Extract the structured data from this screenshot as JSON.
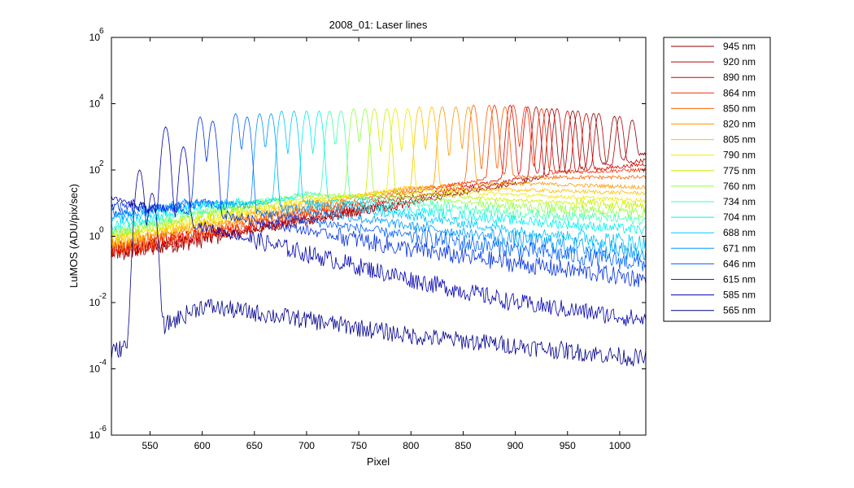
{
  "chart_data": {
    "type": "line",
    "title": "2008_01: Laser lines",
    "xlabel": "Pixel",
    "ylabel": "LuMOS (ADU/pix/sec)",
    "xlim": [
      513,
      1025
    ],
    "ylim": [
      1e-06,
      1000000.0
    ],
    "yscale": "log",
    "grid": false,
    "legend_position": "outside-right",
    "xticks": [
      550,
      600,
      650,
      700,
      750,
      800,
      850,
      900,
      950,
      1000
    ],
    "xtick_labels": [
      "550",
      "600",
      "650",
      "700",
      "750",
      "800",
      "850",
      "900",
      "950",
      "1000"
    ],
    "yticks": [
      {
        "base": "10",
        "exp": "-6",
        "value": 1e-06
      },
      {
        "base": "10",
        "exp": "-4",
        "value": 0.0001
      },
      {
        "base": "10",
        "exp": "-2",
        "value": 0.01
      },
      {
        "base": "10",
        "exp": "0",
        "value": 1
      },
      {
        "base": "10",
        "exp": "2",
        "value": 100
      },
      {
        "base": "10",
        "exp": "4",
        "value": 10000
      },
      {
        "base": "10",
        "exp": "6",
        "value": 1000000
      }
    ],
    "series": [
      {
        "name": "945 nm",
        "color": "#8b0000",
        "peak_pixels": [
          935,
          955,
          975,
          995,
          1012
        ],
        "peak_values": [
          7000,
          6000,
          5000,
          4000,
          3000
        ],
        "baseline": [
          [
            513,
            0.3
          ],
          [
            600,
            0.8
          ],
          [
            700,
            3
          ],
          [
            800,
            10
          ],
          [
            900,
            40
          ],
          [
            1025,
            300
          ]
        ]
      },
      {
        "name": "920 nm",
        "color": "#b40000",
        "peak_pixels": [
          920,
          940,
          960,
          980,
          1000
        ],
        "peak_values": [
          8000,
          7000,
          6000,
          5000,
          4000
        ],
        "baseline": [
          [
            513,
            0.3
          ],
          [
            600,
            0.9
          ],
          [
            700,
            3
          ],
          [
            800,
            12
          ],
          [
            900,
            50
          ],
          [
            1025,
            200
          ]
        ]
      },
      {
        "name": "890 nm",
        "color": "#d70000",
        "peak_pixels": [
          895,
          912,
          930,
          950,
          968
        ],
        "peak_values": [
          9000,
          8000,
          7000,
          6000,
          5000
        ],
        "baseline": [
          [
            513,
            0.4
          ],
          [
            600,
            1
          ],
          [
            700,
            4
          ],
          [
            800,
            15
          ],
          [
            900,
            60
          ],
          [
            1025,
            150
          ]
        ]
      },
      {
        "name": "864 nm",
        "color": "#f03000",
        "peak_pixels": [
          880,
          898,
          910,
          925
        ],
        "peak_values": [
          9000,
          9000,
          8000,
          7000
        ],
        "baseline": [
          [
            513,
            0.4
          ],
          [
            600,
            1.2
          ],
          [
            700,
            5
          ],
          [
            800,
            20
          ],
          [
            900,
            80
          ],
          [
            1025,
            100
          ]
        ]
      },
      {
        "name": "850 nm",
        "color": "#ff6000",
        "peak_pixels": [
          860,
          875,
          890
        ],
        "peak_values": [
          9000,
          9000,
          8000
        ],
        "baseline": [
          [
            513,
            0.5
          ],
          [
            600,
            1.5
          ],
          [
            700,
            6
          ],
          [
            800,
            25
          ],
          [
            900,
            60
          ],
          [
            1025,
            60
          ]
        ]
      },
      {
        "name": "820 nm",
        "color": "#ff9800",
        "peak_pixels": [
          830,
          843,
          855
        ],
        "peak_values": [
          8000,
          8000,
          8000
        ],
        "baseline": [
          [
            513,
            0.6
          ],
          [
            600,
            2
          ],
          [
            700,
            8
          ],
          [
            800,
            30
          ],
          [
            900,
            40
          ],
          [
            1025,
            30
          ]
        ]
      },
      {
        "name": "805 nm",
        "color": "#ffc000",
        "peak_pixels": [
          808,
          820
        ],
        "peak_values": [
          8000,
          8000
        ],
        "baseline": [
          [
            513,
            0.7
          ],
          [
            600,
            2.5
          ],
          [
            700,
            10
          ],
          [
            800,
            30
          ],
          [
            900,
            25
          ],
          [
            1025,
            20
          ]
        ]
      },
      {
        "name": "790 nm",
        "color": "#f0e800",
        "peak_pixels": [
          785,
          797
        ],
        "peak_values": [
          7000,
          7000
        ],
        "baseline": [
          [
            513,
            0.8
          ],
          [
            600,
            3
          ],
          [
            700,
            12
          ],
          [
            800,
            25
          ],
          [
            900,
            18
          ],
          [
            1025,
            12
          ]
        ]
      },
      {
        "name": "775 nm",
        "color": "#c8f000",
        "peak_pixels": [
          765,
          777
        ],
        "peak_values": [
          7000,
          7000
        ],
        "baseline": [
          [
            513,
            1
          ],
          [
            600,
            4
          ],
          [
            700,
            15
          ],
          [
            800,
            20
          ],
          [
            900,
            12
          ],
          [
            1025,
            8
          ]
        ]
      },
      {
        "name": "760 nm",
        "color": "#90ff40",
        "peak_pixels": [
          745,
          756
        ],
        "peak_values": [
          7000,
          7000
        ],
        "baseline": [
          [
            513,
            1.2
          ],
          [
            600,
            5
          ],
          [
            700,
            18
          ],
          [
            800,
            15
          ],
          [
            900,
            8
          ],
          [
            1025,
            5
          ]
        ]
      },
      {
        "name": "734 nm",
        "color": "#40ffb0",
        "peak_pixels": [
          722,
          733
        ],
        "peak_values": [
          6000,
          6000
        ],
        "baseline": [
          [
            513,
            1.5
          ],
          [
            600,
            6
          ],
          [
            700,
            20
          ],
          [
            800,
            10
          ],
          [
            900,
            5
          ],
          [
            1025,
            3
          ]
        ]
      },
      {
        "name": "704 nm",
        "color": "#00f0f0",
        "peak_pixels": [
          700,
          712
        ],
        "peak_values": [
          6000,
          6000
        ],
        "baseline": [
          [
            513,
            2
          ],
          [
            600,
            8
          ],
          [
            700,
            15
          ],
          [
            800,
            6
          ],
          [
            900,
            3
          ],
          [
            1025,
            1.5
          ]
        ]
      },
      {
        "name": "688 nm",
        "color": "#00c8ff",
        "peak_pixels": [
          676,
          688
        ],
        "peak_values": [
          6000,
          6000
        ],
        "baseline": [
          [
            513,
            3
          ],
          [
            600,
            10
          ],
          [
            700,
            10
          ],
          [
            800,
            4
          ],
          [
            900,
            1.5
          ],
          [
            1025,
            0.6
          ]
        ]
      },
      {
        "name": "671 nm",
        "color": "#0098ff",
        "peak_pixels": [
          655,
          666
        ],
        "peak_values": [
          5000,
          5000
        ],
        "baseline": [
          [
            513,
            4
          ],
          [
            600,
            12
          ],
          [
            700,
            6
          ],
          [
            800,
            2
          ],
          [
            900,
            0.8
          ],
          [
            1025,
            0.3
          ]
        ]
      },
      {
        "name": "646 nm",
        "color": "#0060ff",
        "peak_pixels": [
          632,
          643
        ],
        "peak_values": [
          5000,
          4000
        ],
        "baseline": [
          [
            513,
            5
          ],
          [
            600,
            10
          ],
          [
            700,
            3
          ],
          [
            800,
            1
          ],
          [
            900,
            0.4
          ],
          [
            1025,
            0.15
          ]
        ]
      },
      {
        "name": "615 nm",
        "color": "#0030e0",
        "peak_pixels": [
          598,
          610
        ],
        "peak_values": [
          4000,
          3000
        ],
        "baseline": [
          [
            513,
            8
          ],
          [
            600,
            6
          ],
          [
            700,
            1.5
          ],
          [
            800,
            0.4
          ],
          [
            900,
            0.15
          ],
          [
            1025,
            0.05
          ]
        ]
      },
      {
        "name": "585 nm",
        "color": "#0000b0",
        "peak_pixels": [
          565,
          582
        ],
        "peak_values": [
          2000,
          500
        ],
        "baseline": [
          [
            513,
            15
          ],
          [
            600,
            2
          ],
          [
            700,
            0.3
          ],
          [
            800,
            0.05
          ],
          [
            900,
            0.01
          ],
          [
            1025,
            0.003
          ]
        ]
      },
      {
        "name": "565 nm",
        "color": "#00008b",
        "peak_pixels": [
          540,
          552
        ],
        "peak_values": [
          100,
          20
        ],
        "baseline": [
          [
            513,
            0.0003
          ],
          [
            600,
            0.008
          ],
          [
            700,
            0.003
          ],
          [
            800,
            0.001
          ],
          [
            900,
            0.0005
          ],
          [
            1025,
            0.0002
          ]
        ]
      }
    ]
  }
}
